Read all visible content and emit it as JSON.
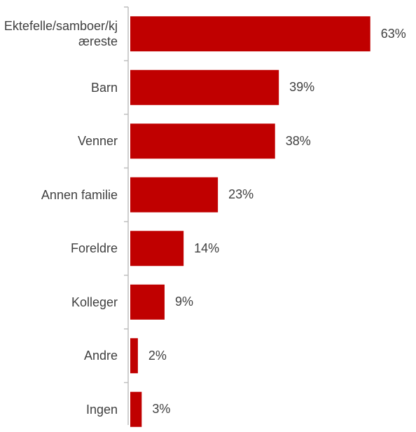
{
  "chart_data": {
    "type": "bar",
    "orientation": "horizontal",
    "categories": [
      "Ektefelle/samboer/kjæreste",
      "Barn",
      "Venner",
      "Annen familie",
      "Foreldre",
      "Kolleger",
      "Andre",
      "Ingen"
    ],
    "values": [
      63,
      39,
      38,
      23,
      14,
      9,
      2,
      3
    ],
    "value_labels": [
      "63%",
      "39%",
      "38%",
      "23%",
      "14%",
      "9%",
      "2%",
      "3%"
    ],
    "color": "#c00000"
  }
}
